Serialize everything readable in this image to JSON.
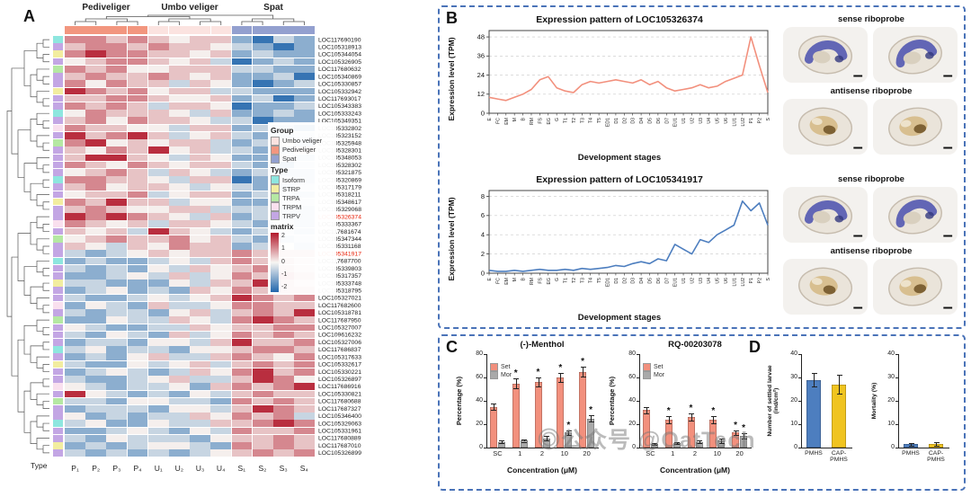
{
  "panels": {
    "a": {
      "label": "A"
    },
    "b": {
      "label": "B"
    },
    "c": {
      "label": "C"
    },
    "d": {
      "label": "D"
    }
  },
  "watermark": "公众号 @OatTech",
  "panelA": {
    "group_headers": [
      "Pediveliger",
      "Umbo veliger",
      "Spat"
    ],
    "column_labels": [
      "P₁",
      "P₂",
      "P₃",
      "P₄",
      "U₁",
      "U₂",
      "U₃",
      "U₄",
      "S₁",
      "S₂",
      "S₃",
      "S₄"
    ],
    "column_groups": [
      0,
      0,
      0,
      0,
      1,
      1,
      1,
      1,
      2,
      2,
      2,
      2
    ],
    "group_colors": [
      "#f2967f",
      "#fbe3e0",
      "#93a0cf"
    ],
    "type_axis_label": "Type",
    "legend_group": {
      "title": "Group",
      "items": [
        {
          "label": "Umbo veliger",
          "color": "#fbe3e0"
        },
        {
          "label": "Pediveliger",
          "color": "#f2967f"
        },
        {
          "label": "Spat",
          "color": "#93a0cf"
        }
      ]
    },
    "legend_type": {
      "title": "Type",
      "items": [
        {
          "label": "Isoform",
          "color": "#8ee6df"
        },
        {
          "label": "STRP",
          "color": "#f2eda0"
        },
        {
          "label": "TRPA",
          "color": "#b5e8a3"
        },
        {
          "label": "TRPM",
          "color": "#f9e0ee"
        },
        {
          "label": "TRPV",
          "color": "#c3a6e4"
        }
      ]
    },
    "legend_matrix": {
      "title": "matrix",
      "ticks": [
        "2",
        "1",
        "0",
        "-1",
        "-2"
      ]
    },
    "highlight_rows": [
      "LOC105326374",
      "LOC105341917"
    ],
    "highlight_color": "#e8220a"
  },
  "panelB": {
    "probe_labels": [
      "sense riboprobe",
      "antisense riboprobe"
    ]
  },
  "chart_data": [
    {
      "id": "trp-heatmap",
      "type": "heatmap",
      "panel": "A",
      "columns": [
        "P1",
        "P2",
        "P3",
        "P4",
        "U1",
        "U2",
        "U3",
        "U4",
        "S1",
        "S2",
        "S3",
        "S4"
      ],
      "rows": [
        "LOC117690190",
        "LOC105318913",
        "LOC105344054",
        "LOC105326905",
        "LOC117680632",
        "LOC105340869",
        "LOC105330857",
        "LOC105332942",
        "LOC117693017",
        "LOC105343383",
        "LOC105333243",
        "LOC105349351",
        "LOC105332802",
        "LOC105323152",
        "LOC105325948",
        "LOC105328301",
        "LOC105348053",
        "LOC105328302",
        "LOC105321875",
        "LOC105320869",
        "LOC105317179",
        "LOC105318211",
        "LOC105348617",
        "LOC105329068",
        "LOC105326374",
        "LOC105333367",
        "LOC117681674",
        "LOC105347344",
        "LOC105331168",
        "LOC105341917",
        "LOC117687700",
        "LOC105339803",
        "LOC105317357",
        "LOC105333748",
        "LOC105318795",
        "LOC105327021",
        "LOC117682600",
        "LOC105318781",
        "LOC117687950",
        "LOC105327007",
        "LOC109616232",
        "LOC105327006",
        "LOC117686837",
        "LOC105317633",
        "LOC105332617",
        "LOC105330221",
        "LOC105326897",
        "LOC117686916",
        "LOC105330821",
        "LOC117680688",
        "LOC117687327",
        "LOC105346400",
        "LOC105329063",
        "LOC105331961",
        "LOC117680889",
        "LOC117687010",
        "LOC105326899"
      ],
      "row_types": "IVSVAVVSVVIVMVAVVVVIVVSVVMVAVVIVVSVVMVAVVVIVSVVMVAVVIVVSV",
      "cells": [
        "rrprpwppbBqb",
        "prrprppwqbBb",
        "rRrrppwpbqbb",
        "wprrpwpqBbqb",
        "rprwwpppqqbb",
        "prpprpwpbbqB",
        "rwrppqpwbBbq",
        "Rrprwppqqbbb",
        "pprrpwwpbqBb",
        "rprpqppwBbbq",
        "wrpppwqpbbqb",
        "prwrppwqqBbb",
        "rppwwqppbqbB",
        "RprRpqwpqbbq",
        "rRwpwppqbqwb",
        "pwrpRwpqqbbp",
        "pRRpwqpwbbqb",
        "rpwrpwppqbBq",
        "wprpqpwqbqbb",
        "rrppwqppBbqb",
        "prwppwqwqbbq",
        "wpprqwppbqqb",
        "rpRppqwwbbqq",
        "prpwwppqqqbb",
        "RrRrpwqpbqbb",
        "rpwpqppwqbqb",
        "pwpqRpwqbqqb",
        "wprpprwpqbbq",
        "pwqpwrppbqwb",
        "qbqwpwpprprr",
        "bqbbqwqprprp",
        "qbqbwqpwprrp",
        "bbqwqpqwrpRr",
        "qqbbbwqppRrp",
        "bqwbqbpwrprr",
        "qbbqwqwpRrpr",
        "bwqbpqqwrrpp",
        "qbqqbwpqprpR",
        "bbwqqpwqrRrp",
        "wqbbqqpwpprr",
        "qbwqbpqwrprp",
        "bqqbwwqpRppr",
        "qwbqqbwwprrp",
        "bqbwpqqprpwr",
        "qbbwqwpqprpr",
        "bqwqbqpwrRpr",
        "qbbqwpqqpRrw",
        "wqbqqwbprprR",
        "Rwqbqbwqprpp",
        "qqbwwqqbrprp",
        "bqqqbwwqpRrp",
        "wbqbqqpwrprq",
        "qwbbwqqpprRr",
        "bbqwqbwqrppr",
        "qbwqqqbwpprp",
        "bqbqwwqbrprp",
        "qbqbqbqwprpr"
      ],
      "value_encoding": {
        "R": 1.8,
        "r": 1.0,
        "p": 0.45,
        "w": 0.05,
        "q": -0.45,
        "b": -1.0,
        "B": -1.8
      },
      "color_scale": {
        "max_color": "#b2182b",
        "mid_color": "#f7f5f2",
        "min_color": "#2166ac",
        "domain": [
          -2,
          2
        ]
      }
    },
    {
      "id": "loc105326374",
      "type": "line",
      "title": "Expression pattern of LOC105326374",
      "ylabel": "Expression level (TPM)",
      "xlabel": "Development stages",
      "yticks": [
        0,
        12,
        24,
        36,
        48
      ],
      "ylim": [
        0,
        52
      ],
      "color": "#f2907d",
      "x": [
        "E",
        "FC",
        "EM",
        "M",
        "B",
        "RM",
        "FS",
        "EG",
        "G",
        "T1",
        "T2",
        "T3",
        "T4",
        "T5",
        "ED1",
        "D1",
        "D2",
        "D3",
        "D4",
        "D5",
        "D6",
        "D7",
        "EU1",
        "U1",
        "U2",
        "U3",
        "U4",
        "U5",
        "U6",
        "LU1",
        "LU2",
        "P1",
        "P2",
        "S"
      ],
      "values": [
        10,
        9,
        8,
        10,
        12,
        15,
        21,
        23,
        16,
        14,
        13,
        18,
        20,
        19,
        20,
        21,
        20,
        19,
        21,
        18,
        20,
        16,
        14,
        15,
        16,
        18,
        16,
        17,
        20,
        22,
        24,
        48,
        30,
        13
      ]
    },
    {
      "id": "loc105341917",
      "type": "line",
      "title": "Expression pattern of LOC105341917",
      "ylabel": "Expression level (TPM)",
      "xlabel": "Development stages",
      "yticks": [
        0,
        2,
        4,
        6,
        8
      ],
      "ylim": [
        0,
        8.6
      ],
      "color": "#4d7ebf",
      "x": [
        "E",
        "FC",
        "EM",
        "M",
        "B",
        "RM",
        "FS",
        "EG",
        "G",
        "T1",
        "T2",
        "T3",
        "T4",
        "T5",
        "ED1",
        "D1",
        "D2",
        "D3",
        "D4",
        "D5",
        "D6",
        "D7",
        "EU1",
        "U1",
        "U2",
        "U3",
        "U4",
        "U5",
        "U6",
        "LU1",
        "LU2",
        "P1",
        "P2",
        "S"
      ],
      "values": [
        0.3,
        0.2,
        0.2,
        0.3,
        0.2,
        0.3,
        0.4,
        0.3,
        0.3,
        0.4,
        0.3,
        0.5,
        0.4,
        0.5,
        0.6,
        0.8,
        0.7,
        1.0,
        1.2,
        1.0,
        1.5,
        1.3,
        3.0,
        2.5,
        2.0,
        3.5,
        3.2,
        4.0,
        4.5,
        5.0,
        7.5,
        6.5,
        7.3,
        5.0
      ]
    },
    {
      "id": "menthol",
      "type": "bar",
      "title": "(-)-Menthol",
      "ylabel": "Percentage (%)",
      "xlabel": "Concentration (μM)",
      "yticks": [
        0,
        20,
        40,
        60,
        80
      ],
      "ylim": [
        0,
        80
      ],
      "categories": [
        "SC",
        "1",
        "2",
        "10",
        "20"
      ],
      "series": [
        {
          "name": "Set",
          "color": "#f2907d",
          "values": [
            35,
            55,
            56,
            60,
            65
          ],
          "errors": [
            3,
            4,
            4,
            4,
            4
          ],
          "sig": [
            false,
            true,
            true,
            true,
            true
          ]
        },
        {
          "name": "Mor",
          "color": "#a9a9a9",
          "values": [
            5,
            6,
            8,
            13,
            25
          ],
          "errors": [
            1,
            1,
            2,
            2,
            3
          ],
          "sig": [
            false,
            false,
            false,
            true,
            true
          ]
        }
      ]
    },
    {
      "id": "rq-00203078",
      "type": "bar",
      "title": "RQ-00203078",
      "ylabel": "Percentage (%)",
      "xlabel": "Concentration (μM)",
      "yticks": [
        0,
        20,
        40,
        60,
        80
      ],
      "ylim": [
        0,
        80
      ],
      "categories": [
        "SC",
        "1",
        "2",
        "10",
        "20"
      ],
      "series": [
        {
          "name": "Set",
          "color": "#f2907d",
          "values": [
            32,
            24,
            26,
            24,
            13
          ],
          "errors": [
            3,
            3,
            3,
            3,
            2
          ],
          "sig": [
            false,
            true,
            true,
            true,
            true
          ]
        },
        {
          "name": "Mor",
          "color": "#a9a9a9",
          "values": [
            3,
            4,
            5,
            6,
            10
          ],
          "errors": [
            1,
            1,
            1,
            2,
            2
          ],
          "sig": [
            false,
            false,
            false,
            false,
            true
          ]
        }
      ]
    },
    {
      "id": "settled-larvae",
      "type": "bar",
      "title": "",
      "ylabel": "Number of settled larvae (ind/cm²)",
      "xlabel": "",
      "yticks": [
        0,
        10,
        20,
        30,
        40
      ],
      "ylim": [
        0,
        40
      ],
      "categories": [
        "PMHS",
        "CAP-PMHS"
      ],
      "series": [
        {
          "name": "larvae",
          "colors": [
            "#4d7ebf",
            "#f0c420"
          ],
          "values": [
            29,
            27
          ],
          "errors": [
            3,
            4
          ],
          "sig": [
            false,
            false
          ]
        }
      ]
    },
    {
      "id": "mortality",
      "type": "bar",
      "title": "",
      "ylabel": "Mortality (%)",
      "xlabel": "",
      "yticks": [
        0,
        10,
        20,
        30,
        40
      ],
      "ylim": [
        0,
        40
      ],
      "categories": [
        "PMHS",
        "CAP-PMHS"
      ],
      "series": [
        {
          "name": "mortality",
          "colors": [
            "#4d7ebf",
            "#f0c420"
          ],
          "values": [
            1.5,
            1.5
          ],
          "errors": [
            0.6,
            0.7
          ],
          "sig": [
            false,
            false
          ]
        }
      ]
    }
  ]
}
